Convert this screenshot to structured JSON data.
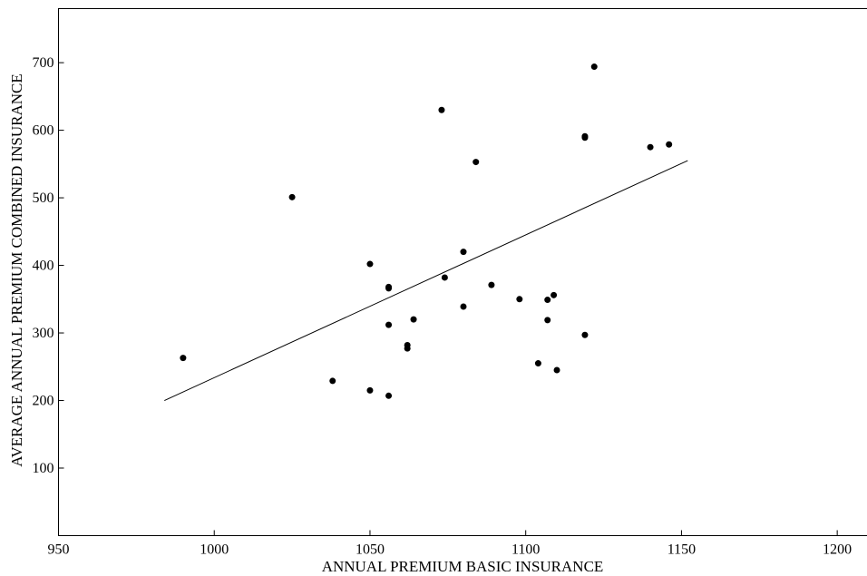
{
  "chart_data": {
    "type": "scatter",
    "title": "",
    "xlabel": "ANNUAL PREMIUM BASIC INSURANCE",
    "ylabel": "AVERAGE ANNUAL PREMIUM COMBINED INSURANCE",
    "xlim": [
      950,
      1210
    ],
    "ylim": [
      0,
      780
    ],
    "xticks": [
      950,
      1000,
      1050,
      1100,
      1150,
      1200
    ],
    "yticks": [
      100,
      200,
      300,
      400,
      500,
      600,
      700
    ],
    "grid": false,
    "points": [
      {
        "x": 990,
        "y": 263
      },
      {
        "x": 1025,
        "y": 501
      },
      {
        "x": 1038,
        "y": 229
      },
      {
        "x": 1050,
        "y": 402
      },
      {
        "x": 1050,
        "y": 215
      },
      {
        "x": 1056,
        "y": 368
      },
      {
        "x": 1056,
        "y": 366
      },
      {
        "x": 1056,
        "y": 312
      },
      {
        "x": 1056,
        "y": 207
      },
      {
        "x": 1062,
        "y": 282
      },
      {
        "x": 1062,
        "y": 277
      },
      {
        "x": 1064,
        "y": 320
      },
      {
        "x": 1073,
        "y": 630
      },
      {
        "x": 1074,
        "y": 382
      },
      {
        "x": 1080,
        "y": 420
      },
      {
        "x": 1080,
        "y": 339
      },
      {
        "x": 1084,
        "y": 553
      },
      {
        "x": 1089,
        "y": 371
      },
      {
        "x": 1098,
        "y": 350
      },
      {
        "x": 1104,
        "y": 255
      },
      {
        "x": 1107,
        "y": 349
      },
      {
        "x": 1107,
        "y": 319
      },
      {
        "x": 1109,
        "y": 356
      },
      {
        "x": 1110,
        "y": 245
      },
      {
        "x": 1119,
        "y": 591
      },
      {
        "x": 1119,
        "y": 589
      },
      {
        "x": 1119,
        "y": 297
      },
      {
        "x": 1122,
        "y": 694
      },
      {
        "x": 1140,
        "y": 575
      },
      {
        "x": 1146,
        "y": 579
      }
    ],
    "fit_line": {
      "x": [
        984,
        1152
      ],
      "y": [
        200,
        555
      ]
    }
  }
}
